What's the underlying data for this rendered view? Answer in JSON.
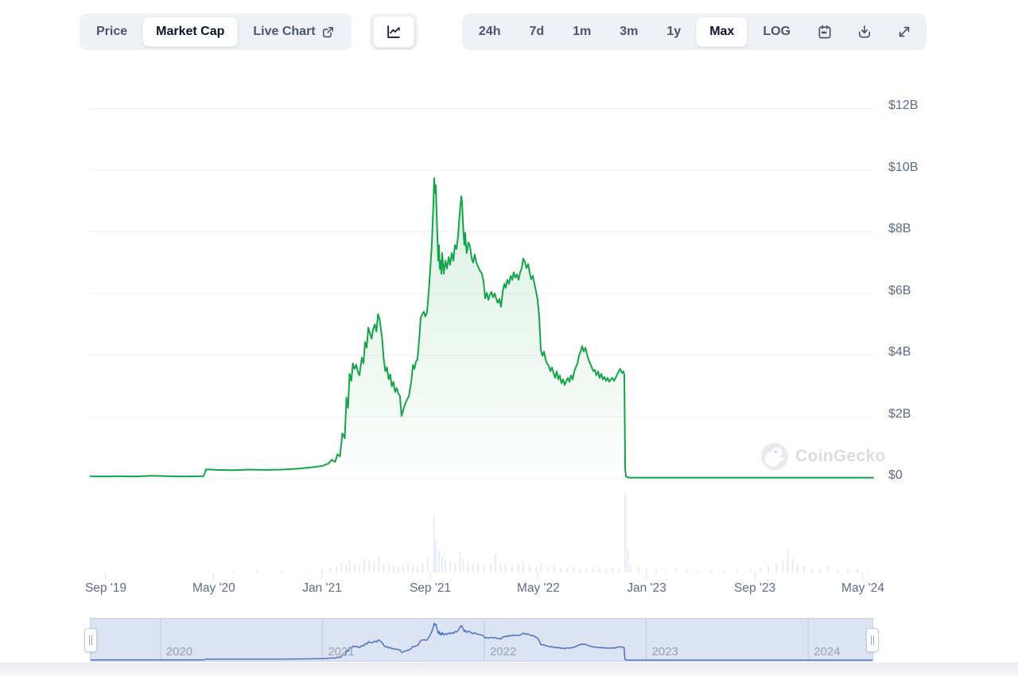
{
  "toolbar": {
    "chart_type_tabs": [
      {
        "label": "Price",
        "selected": false
      },
      {
        "label": "Market Cap",
        "selected": true
      },
      {
        "label": "Live Chart",
        "selected": false,
        "icon": "external-link-icon"
      }
    ],
    "chart_style_button": {
      "icon": "line-chart-icon"
    },
    "range_tabs": [
      {
        "label": "24h",
        "selected": false
      },
      {
        "label": "7d",
        "selected": false
      },
      {
        "label": "1m",
        "selected": false
      },
      {
        "label": "3m",
        "selected": false
      },
      {
        "label": "1y",
        "selected": false
      },
      {
        "label": "Max",
        "selected": true
      },
      {
        "label": "LOG",
        "selected": false
      }
    ],
    "icon_buttons": [
      "calendar-icon",
      "download-icon",
      "expand-icon"
    ]
  },
  "watermark": {
    "label": "CoinGecko"
  },
  "colors": {
    "line_green": "#16a449",
    "area_green_tint": "rgba(22,164,73,0.14)",
    "navigator_line_blue": "#4e72c5",
    "navigator_bg": "#dce3f2",
    "toolbar_bg": "#eef1f6",
    "selected_text": "#0c1424",
    "muted_text": "#4a566c",
    "axis_text": "#5d6c87",
    "gridline": "#edf0f5",
    "volume_bar": "#e8ecf4"
  },
  "chart_data": {
    "type": "area",
    "metric": "Market Cap",
    "unit": "USD billions",
    "x_range_years": [
      2019.569,
      2024.397
    ],
    "y_axis": {
      "ticks": [
        {
          "label": "$12B",
          "value": 12
        },
        {
          "label": "$10B",
          "value": 10
        },
        {
          "label": "$8B",
          "value": 8
        },
        {
          "label": "$6B",
          "value": 6
        },
        {
          "label": "$4B",
          "value": 4
        },
        {
          "label": "$2B",
          "value": 2
        },
        {
          "label": "$0",
          "value": 0
        }
      ]
    },
    "x_axis": {
      "ticks": [
        {
          "label": "Sep '19",
          "t": 2019.667
        },
        {
          "label": "May '20",
          "t": 2020.333
        },
        {
          "label": "Jan '21",
          "t": 2021.0
        },
        {
          "label": "Sep '21",
          "t": 2021.667
        },
        {
          "label": "May '22",
          "t": 2022.333
        },
        {
          "label": "Jan '23",
          "t": 2023.0
        },
        {
          "label": "Sep '23",
          "t": 2023.667
        },
        {
          "label": "May '24",
          "t": 2024.333
        }
      ]
    },
    "series_name": "market_cap_usd_billions",
    "series": [
      [
        2019.57,
        0.06
      ],
      [
        2019.65,
        0.05
      ],
      [
        2019.75,
        0.06
      ],
      [
        2019.85,
        0.05
      ],
      [
        2019.95,
        0.07
      ],
      [
        2020.05,
        0.06
      ],
      [
        2020.15,
        0.05
      ],
      [
        2020.27,
        0.06
      ],
      [
        2020.285,
        0.28
      ],
      [
        2020.35,
        0.26
      ],
      [
        2020.45,
        0.25
      ],
      [
        2020.55,
        0.27
      ],
      [
        2020.65,
        0.26
      ],
      [
        2020.75,
        0.27
      ],
      [
        2020.85,
        0.3
      ],
      [
        2020.93,
        0.34
      ],
      [
        2021.0,
        0.39
      ],
      [
        2021.04,
        0.47
      ],
      [
        2021.06,
        0.59
      ],
      [
        2021.08,
        0.52
      ],
      [
        2021.095,
        0.77
      ],
      [
        2021.11,
        0.7
      ],
      [
        2021.125,
        1.45
      ],
      [
        2021.14,
        1.29
      ],
      [
        2021.15,
        2.61
      ],
      [
        2021.16,
        2.27
      ],
      [
        2021.17,
        3.38
      ],
      [
        2021.18,
        3.15
      ],
      [
        2021.19,
        3.72
      ],
      [
        2021.2,
        3.54
      ],
      [
        2021.21,
        3.67
      ],
      [
        2021.22,
        3.46
      ],
      [
        2021.23,
        3.33
      ],
      [
        2021.245,
        3.9
      ],
      [
        2021.255,
        3.72
      ],
      [
        2021.265,
        4.41
      ],
      [
        2021.275,
        4.23
      ],
      [
        2021.285,
        4.88
      ],
      [
        2021.295,
        4.7
      ],
      [
        2021.305,
        4.52
      ],
      [
        2021.315,
        4.83
      ],
      [
        2021.325,
        4.98
      ],
      [
        2021.335,
        4.75
      ],
      [
        2021.345,
        5.32
      ],
      [
        2021.355,
        5.14
      ],
      [
        2021.37,
        4.54
      ],
      [
        2021.38,
        3.85
      ],
      [
        2021.39,
        3.46
      ],
      [
        2021.4,
        3.59
      ],
      [
        2021.41,
        3.2
      ],
      [
        2021.42,
        3.36
      ],
      [
        2021.43,
        2.97
      ],
      [
        2021.44,
        3.12
      ],
      [
        2021.45,
        2.79
      ],
      [
        2021.46,
        2.92
      ],
      [
        2021.47,
        2.74
      ],
      [
        2021.48,
        2.66
      ],
      [
        2021.49,
        2.01
      ],
      [
        2021.505,
        2.3
      ],
      [
        2021.52,
        2.5
      ],
      [
        2021.535,
        2.66
      ],
      [
        2021.55,
        3.15
      ],
      [
        2021.56,
        3.67
      ],
      [
        2021.57,
        3.54
      ],
      [
        2021.578,
        3.77
      ],
      [
        2021.588,
        3.85
      ],
      [
        2021.598,
        4.47
      ],
      [
        2021.608,
        5.21
      ],
      [
        2021.618,
        5.32
      ],
      [
        2021.627,
        5.39
      ],
      [
        2021.637,
        5.24
      ],
      [
        2021.647,
        5.37
      ],
      [
        2021.657,
        6.01
      ],
      [
        2021.667,
        6.79
      ],
      [
        2021.676,
        7.56
      ],
      [
        2021.686,
        8.85
      ],
      [
        2021.691,
        9.73
      ],
      [
        2021.696,
        9.24
      ],
      [
        2021.701,
        9.5
      ],
      [
        2021.706,
        8.59
      ],
      [
        2021.711,
        7.82
      ],
      [
        2021.716,
        7.05
      ],
      [
        2021.721,
        7.56
      ],
      [
        2021.725,
        6.79
      ],
      [
        2021.73,
        7.05
      ],
      [
        2021.735,
        6.63
      ],
      [
        2021.74,
        7.3
      ],
      [
        2021.75,
        6.63
      ],
      [
        2021.76,
        7.05
      ],
      [
        2021.77,
        6.79
      ],
      [
        2021.78,
        7.17
      ],
      [
        2021.789,
        6.92
      ],
      [
        2021.799,
        7.3
      ],
      [
        2021.809,
        7.05
      ],
      [
        2021.819,
        7.56
      ],
      [
        2021.828,
        7.43
      ],
      [
        2021.838,
        7.82
      ],
      [
        2021.848,
        8.59
      ],
      [
        2021.858,
        9.14
      ],
      [
        2021.863,
        8.95
      ],
      [
        2021.868,
        8.34
      ],
      [
        2021.873,
        7.82
      ],
      [
        2021.877,
        7.56
      ],
      [
        2021.882,
        7.95
      ],
      [
        2021.887,
        7.56
      ],
      [
        2021.892,
        7.3
      ],
      [
        2021.902,
        7.64
      ],
      [
        2021.912,
        7.51
      ],
      [
        2021.922,
        7.12
      ],
      [
        2021.931,
        6.99
      ],
      [
        2021.941,
        7.25
      ],
      [
        2021.951,
        6.99
      ],
      [
        2021.961,
        6.87
      ],
      [
        2021.971,
        6.74
      ],
      [
        2021.985,
        6.63
      ],
      [
        2021.995,
        6.4
      ],
      [
        2022.005,
        5.83
      ],
      [
        2022.015,
        6.01
      ],
      [
        2022.025,
        5.78
      ],
      [
        2022.034,
        5.94
      ],
      [
        2022.044,
        6.04
      ],
      [
        2022.054,
        5.86
      ],
      [
        2022.064,
        5.99
      ],
      [
        2022.074,
        5.81
      ],
      [
        2022.083,
        5.68
      ],
      [
        2022.093,
        5.81
      ],
      [
        2022.103,
        5.55
      ],
      [
        2022.113,
        6.04
      ],
      [
        2022.123,
        6.3
      ],
      [
        2022.132,
        6.17
      ],
      [
        2022.142,
        6.43
      ],
      [
        2022.152,
        6.3
      ],
      [
        2022.162,
        6.56
      ],
      [
        2022.172,
        6.43
      ],
      [
        2022.181,
        6.68
      ],
      [
        2022.191,
        6.5
      ],
      [
        2022.201,
        6.61
      ],
      [
        2022.211,
        6.43
      ],
      [
        2022.221,
        6.68
      ],
      [
        2022.23,
        6.81
      ],
      [
        2022.24,
        7.12
      ],
      [
        2022.25,
        7.02
      ],
      [
        2022.26,
        6.81
      ],
      [
        2022.27,
        6.94
      ],
      [
        2022.279,
        6.68
      ],
      [
        2022.289,
        6.45
      ],
      [
        2022.299,
        6.56
      ],
      [
        2022.309,
        6.3
      ],
      [
        2022.319,
        6.04
      ],
      [
        2022.328,
        5.78
      ],
      [
        2022.338,
        5.27
      ],
      [
        2022.348,
        4.16
      ],
      [
        2022.358,
        3.97
      ],
      [
        2022.368,
        4.1
      ],
      [
        2022.377,
        3.85
      ],
      [
        2022.387,
        3.72
      ],
      [
        2022.397,
        3.64
      ],
      [
        2022.407,
        3.46
      ],
      [
        2022.417,
        3.59
      ],
      [
        2022.426,
        3.41
      ],
      [
        2022.436,
        3.25
      ],
      [
        2022.446,
        3.46
      ],
      [
        2022.456,
        3.2
      ],
      [
        2022.466,
        3.33
      ],
      [
        2022.475,
        3.07
      ],
      [
        2022.485,
        3.2
      ],
      [
        2022.495,
        3.02
      ],
      [
        2022.505,
        3.15
      ],
      [
        2022.515,
        3.25
      ],
      [
        2022.525,
        3.12
      ],
      [
        2022.534,
        3.33
      ],
      [
        2022.544,
        3.2
      ],
      [
        2022.554,
        3.46
      ],
      [
        2022.564,
        3.59
      ],
      [
        2022.574,
        3.72
      ],
      [
        2022.583,
        3.97
      ],
      [
        2022.593,
        4.1
      ],
      [
        2022.603,
        4.28
      ],
      [
        2022.613,
        4.1
      ],
      [
        2022.623,
        4.23
      ],
      [
        2022.632,
        4.03
      ],
      [
        2022.642,
        3.85
      ],
      [
        2022.652,
        3.72
      ],
      [
        2022.662,
        3.59
      ],
      [
        2022.672,
        3.46
      ],
      [
        2022.681,
        3.51
      ],
      [
        2022.691,
        3.33
      ],
      [
        2022.701,
        3.46
      ],
      [
        2022.711,
        3.25
      ],
      [
        2022.721,
        3.38
      ],
      [
        2022.73,
        3.2
      ],
      [
        2022.74,
        3.28
      ],
      [
        2022.75,
        3.15
      ],
      [
        2022.76,
        3.25
      ],
      [
        2022.77,
        3.12
      ],
      [
        2022.779,
        3.2
      ],
      [
        2022.789,
        3.25
      ],
      [
        2022.799,
        3.15
      ],
      [
        2022.809,
        3.25
      ],
      [
        2022.828,
        3.46
      ],
      [
        2022.838,
        3.54
      ],
      [
        2022.848,
        3.41
      ],
      [
        2022.858,
        3.46
      ],
      [
        2022.863,
        3.33
      ],
      [
        2022.868,
        0.28
      ],
      [
        2022.873,
        0.05
      ],
      [
        2022.89,
        0.01
      ],
      [
        2023.0,
        0.01
      ],
      [
        2023.2,
        0.01
      ],
      [
        2023.4,
        0.01
      ],
      [
        2023.6,
        0.01
      ],
      [
        2023.8,
        0.01
      ],
      [
        2024.0,
        0.01
      ],
      [
        2024.2,
        0.01
      ],
      [
        2024.397,
        0.01
      ]
    ],
    "volume_bars": [
      [
        2020.3,
        0.02
      ],
      [
        2020.45,
        0.02
      ],
      [
        2020.6,
        0.03
      ],
      [
        2020.75,
        0.02
      ],
      [
        2020.9,
        0.03
      ],
      [
        2021.0,
        0.04
      ],
      [
        2021.05,
        0.06
      ],
      [
        2021.09,
        0.08
      ],
      [
        2021.12,
        0.13
      ],
      [
        2021.15,
        0.11
      ],
      [
        2021.17,
        0.15
      ],
      [
        2021.2,
        0.12
      ],
      [
        2021.23,
        0.1
      ],
      [
        2021.26,
        0.17
      ],
      [
        2021.29,
        0.15
      ],
      [
        2021.32,
        0.13
      ],
      [
        2021.35,
        0.23
      ],
      [
        2021.38,
        0.13
      ],
      [
        2021.41,
        0.11
      ],
      [
        2021.44,
        0.09
      ],
      [
        2021.47,
        0.08
      ],
      [
        2021.5,
        0.09
      ],
      [
        2021.53,
        0.11
      ],
      [
        2021.56,
        0.09
      ],
      [
        2021.59,
        0.08
      ],
      [
        2021.62,
        0.12
      ],
      [
        2021.65,
        0.18
      ],
      [
        2021.69,
        0.72
      ],
      [
        2021.7,
        0.42
      ],
      [
        2021.72,
        0.28
      ],
      [
        2021.74,
        0.2
      ],
      [
        2021.76,
        0.16
      ],
      [
        2021.79,
        0.14
      ],
      [
        2021.82,
        0.12
      ],
      [
        2021.85,
        0.26
      ],
      [
        2021.87,
        0.18
      ],
      [
        2021.9,
        0.14
      ],
      [
        2021.93,
        0.11
      ],
      [
        2021.96,
        0.12
      ],
      [
        2022.0,
        0.11
      ],
      [
        2022.04,
        0.09
      ],
      [
        2022.07,
        0.24
      ],
      [
        2022.1,
        0.13
      ],
      [
        2022.13,
        0.11
      ],
      [
        2022.17,
        0.09
      ],
      [
        2022.21,
        0.11
      ],
      [
        2022.24,
        0.14
      ],
      [
        2022.28,
        0.09
      ],
      [
        2022.32,
        0.08
      ],
      [
        2022.35,
        0.13
      ],
      [
        2022.39,
        0.07
      ],
      [
        2022.43,
        0.09
      ],
      [
        2022.47,
        0.07
      ],
      [
        2022.51,
        0.06
      ],
      [
        2022.55,
        0.07
      ],
      [
        2022.59,
        0.05
      ],
      [
        2022.63,
        0.07
      ],
      [
        2022.67,
        0.05
      ],
      [
        2022.71,
        0.06
      ],
      [
        2022.75,
        0.05
      ],
      [
        2022.79,
        0.06
      ],
      [
        2022.83,
        0.05
      ],
      [
        2022.868,
        1.0
      ],
      [
        2022.883,
        0.3
      ],
      [
        2022.9,
        0.1
      ],
      [
        2022.95,
        0.07
      ],
      [
        2023.0,
        0.05
      ],
      [
        2023.06,
        0.04
      ],
      [
        2023.12,
        0.03
      ],
      [
        2023.18,
        0.06
      ],
      [
        2023.25,
        0.04
      ],
      [
        2023.32,
        0.03
      ],
      [
        2023.4,
        0.04
      ],
      [
        2023.48,
        0.03
      ],
      [
        2023.56,
        0.04
      ],
      [
        2023.64,
        0.05
      ],
      [
        2023.7,
        0.06
      ],
      [
        2023.75,
        0.09
      ],
      [
        2023.8,
        0.12
      ],
      [
        2023.84,
        0.16
      ],
      [
        2023.87,
        0.29
      ],
      [
        2023.9,
        0.17
      ],
      [
        2023.93,
        0.11
      ],
      [
        2023.97,
        0.08
      ],
      [
        2024.02,
        0.06
      ],
      [
        2024.07,
        0.05
      ],
      [
        2024.12,
        0.08
      ],
      [
        2024.18,
        0.05
      ],
      [
        2024.24,
        0.04
      ],
      [
        2024.3,
        0.04
      ],
      [
        2024.36,
        0.03
      ]
    ],
    "navigator": {
      "years": [
        {
          "label": "2020",
          "t": 2020
        },
        {
          "label": "2021",
          "t": 2021
        },
        {
          "label": "2022",
          "t": 2022
        },
        {
          "label": "2023",
          "t": 2023
        },
        {
          "label": "2024",
          "t": 2024
        }
      ]
    }
  }
}
